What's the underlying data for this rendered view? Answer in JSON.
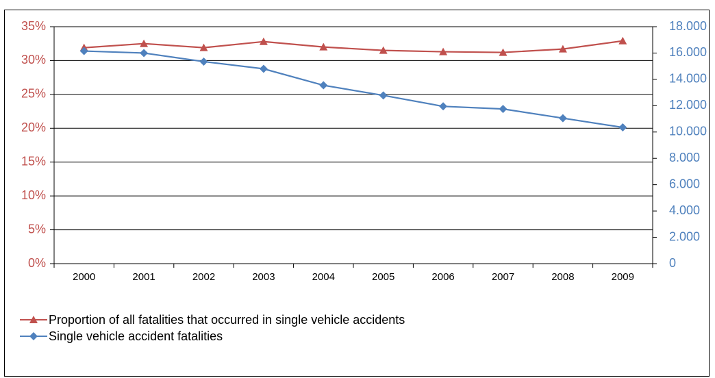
{
  "chart_data": {
    "type": "line",
    "title": "",
    "categories": [
      "2000",
      "2001",
      "2002",
      "2003",
      "2004",
      "2005",
      "2006",
      "2007",
      "2008",
      "2009"
    ],
    "y_left": {
      "ylim": [
        0,
        0.35
      ],
      "ticks": [
        "0%",
        "5%",
        "10%",
        "15%",
        "20%",
        "25%",
        "30%",
        "35%"
      ],
      "color": "#c0504d"
    },
    "y_right": {
      "ylim": [
        0,
        18000
      ],
      "ticks": [
        "0",
        "2.000",
        "4.000",
        "6.000",
        "8.000",
        "10.000",
        "12.000",
        "14.000",
        "16.000",
        "18.000"
      ],
      "color": "#4f81bd"
    },
    "grid": true,
    "legend_position": "bottom-left",
    "series": [
      {
        "name": "Proportion of all fatalities that occurred in single vehicle accidents",
        "axis": "left",
        "marker": "triangle",
        "color": "#c0504d",
        "values": [
          0.319,
          0.325,
          0.319,
          0.328,
          0.32,
          0.315,
          0.313,
          0.312,
          0.317,
          0.329
        ]
      },
      {
        "name": "Single vehicle accident fatalities",
        "axis": "right",
        "marker": "diamond",
        "color": "#4f81bd",
        "values": [
          16150,
          16000,
          15350,
          14800,
          13550,
          12780,
          11950,
          11750,
          11050,
          10350
        ]
      }
    ]
  }
}
